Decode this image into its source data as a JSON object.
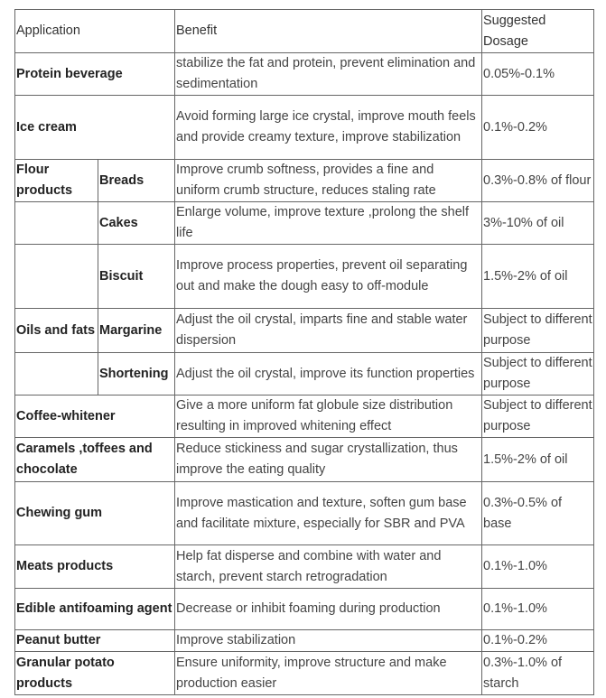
{
  "table": {
    "header": [
      "Application",
      "Benefit",
      "Suggested Dosage"
    ],
    "rows": [
      {
        "application": "Protein beverage",
        "benefit": "stabilize the fat and protein, prevent elimination and sedimentation",
        "dosage": "0.05%-0.1%"
      },
      {
        "application": "Ice cream",
        "benefit": "Avoid forming large ice crystal, improve mouth feels and provide creamy texture, improve stabilization",
        "dosage": "0.1%-0.2%"
      },
      {
        "application": "Flour products",
        "sub": "Breads",
        "benefit": "Improve crumb softness, provides a fine and uniform crumb structure, reduces staling rate",
        "dosage": "0.3%-0.8% of flour"
      },
      {
        "sub": "Cakes",
        "benefit": "Enlarge volume, improve texture ,prolong the shelf life",
        "dosage": "3%-10% of oil"
      },
      {
        "sub": "Biscuit",
        "benefit": "Improve process properties, prevent oil separating out and make the dough easy to off-module",
        "dosage": "1.5%-2% of oil"
      },
      {
        "application": "Oils and fats",
        "sub": "Margarine",
        "benefit": "Adjust the oil crystal, imparts fine and stable water dispersion",
        "dosage": "Subject to different purpose"
      },
      {
        "sub": "Shortening",
        "benefit": "Adjust the oil crystal, improve its function properties",
        "dosage": "Subject to different purpose"
      },
      {
        "application": "Coffee-whitener",
        "benefit": "Give a more uniform fat globule size distribution resulting in improved whitening effect",
        "dosage": "Subject to different purpose"
      },
      {
        "application": "Caramels ,toffees and chocolate",
        "benefit": "Reduce stickiness and sugar crystallization, thus improve the eating quality",
        "dosage": "1.5%-2% of oil"
      },
      {
        "application": "Chewing gum",
        "benefit": "Improve mastication and texture, soften gum base and facilitate mixture, especially for SBR and PVA",
        "dosage": "0.3%-0.5% of base"
      },
      {
        "application": "Meats products",
        "benefit": "Help fat disperse and combine with water and starch, prevent starch retrogradation",
        "dosage": "0.1%-1.0%"
      },
      {
        "application": "Edible antifoaming agent",
        "benefit": "Decrease or inhibit foaming during production",
        "dosage": "0.1%-1.0%"
      },
      {
        "application": "Peanut butter",
        "benefit": "Improve stabilization",
        "dosage": "0.1%-0.2%"
      },
      {
        "application": "Granular potato products",
        "benefit": "Ensure uniformity, improve structure and make production easier",
        "dosage": "0.3%-1.0% of starch"
      }
    ]
  }
}
